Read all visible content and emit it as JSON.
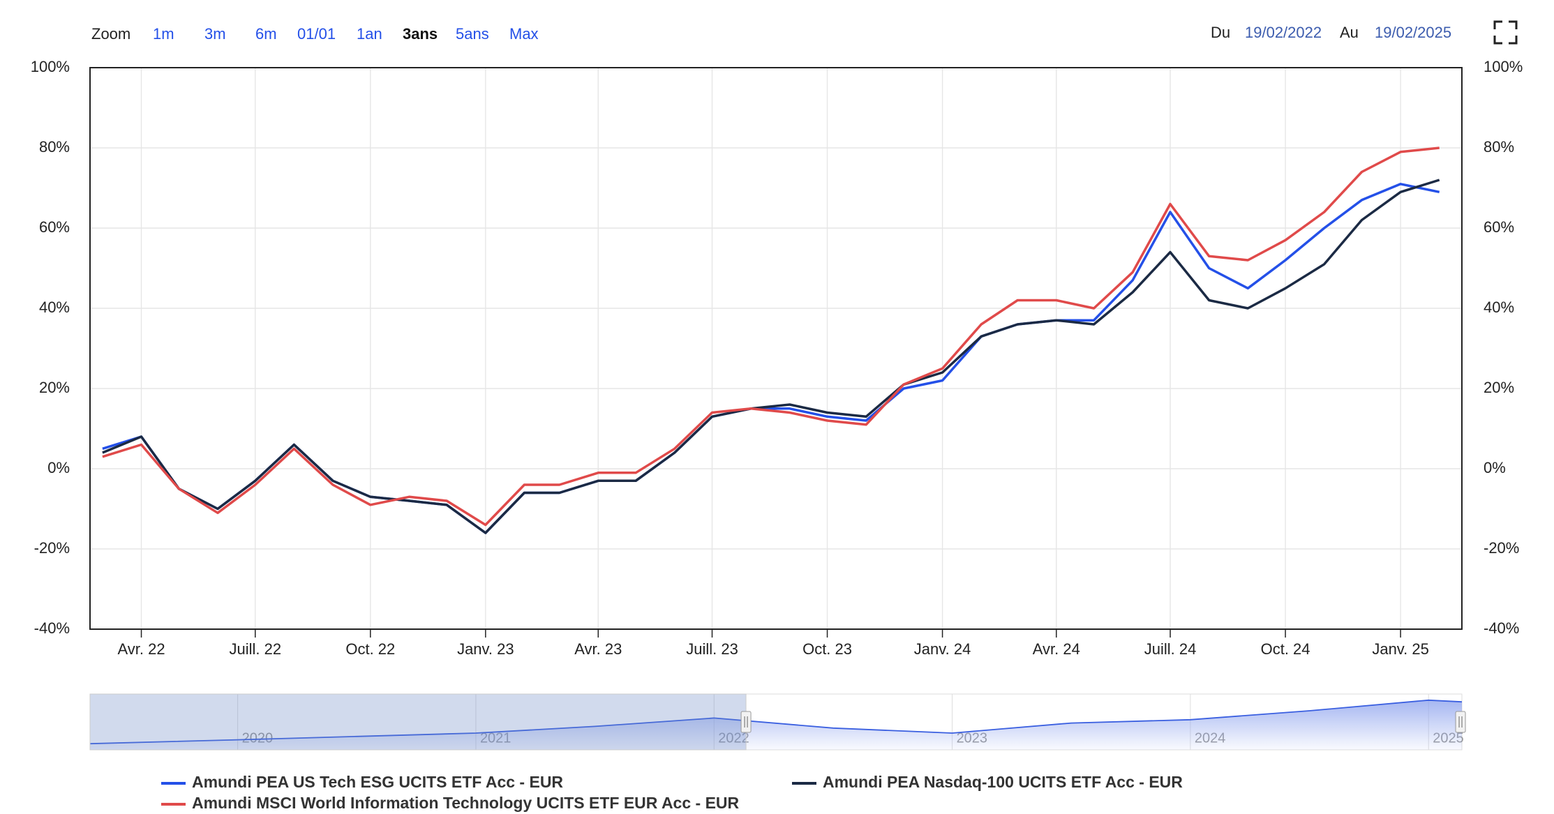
{
  "zoom": {
    "label": "Zoom",
    "buttons": [
      "1m",
      "3m",
      "6m",
      "01/01",
      "1an",
      "3ans",
      "5ans",
      "Max"
    ],
    "active": 5
  },
  "range": {
    "from_label": "Du",
    "from": "19/02/2022",
    "to_label": "Au",
    "to": "19/02/2025"
  },
  "chart_data": {
    "type": "line",
    "x": [
      "2022-03",
      "2022-04",
      "2022-05",
      "2022-06",
      "2022-07",
      "2022-08",
      "2022-09",
      "2022-10",
      "2022-11",
      "2022-12",
      "2023-01",
      "2023-02",
      "2023-03",
      "2023-04",
      "2023-05",
      "2023-06",
      "2023-07",
      "2023-08",
      "2023-09",
      "2023-10",
      "2023-11",
      "2023-12",
      "2024-01",
      "2024-02",
      "2024-03",
      "2024-04",
      "2024-05",
      "2024-06",
      "2024-07",
      "2024-08",
      "2024-09",
      "2024-10",
      "2024-11",
      "2024-12",
      "2025-01",
      "2025-02"
    ],
    "xlim": [
      "2022-02-19",
      "2025-02-19"
    ],
    "xticks": [
      {
        "value": "2022-04",
        "label": "Avr. 22"
      },
      {
        "value": "2022-07",
        "label": "Juill. 22"
      },
      {
        "value": "2022-10",
        "label": "Oct. 22"
      },
      {
        "value": "2023-01",
        "label": "Janv. 23"
      },
      {
        "value": "2023-04",
        "label": "Avr. 23"
      },
      {
        "value": "2023-07",
        "label": "Juill. 23"
      },
      {
        "value": "2023-10",
        "label": "Oct. 23"
      },
      {
        "value": "2024-01",
        "label": "Janv. 24"
      },
      {
        "value": "2024-04",
        "label": "Avr. 24"
      },
      {
        "value": "2024-07",
        "label": "Juill. 24"
      },
      {
        "value": "2024-10",
        "label": "Oct. 24"
      },
      {
        "value": "2025-01",
        "label": "Janv. 25"
      }
    ],
    "ylim": [
      -40,
      100
    ],
    "yticks": [
      {
        "value": -40,
        "label": "-40%"
      },
      {
        "value": -20,
        "label": "-20%"
      },
      {
        "value": 0,
        "label": "0%"
      },
      {
        "value": 20,
        "label": "20%"
      },
      {
        "value": 40,
        "label": "40%"
      },
      {
        "value": 60,
        "label": "60%"
      },
      {
        "value": 80,
        "label": "80%"
      },
      {
        "value": 100,
        "label": "100%"
      }
    ],
    "y2lim": [
      -40,
      100
    ],
    "y2ticks": [
      {
        "value": -40,
        "label": "-40%"
      },
      {
        "value": -20,
        "label": "-20%"
      },
      {
        "value": 0,
        "label": "0%"
      },
      {
        "value": 20,
        "label": "20%"
      },
      {
        "value": 40,
        "label": "40%"
      },
      {
        "value": 60,
        "label": "60%"
      },
      {
        "value": 80,
        "label": "80%"
      },
      {
        "value": 100,
        "label": "100%"
      }
    ],
    "grid": true,
    "series": [
      {
        "name": "Amundi PEA US Tech ESG UCITS ETF Acc - EUR",
        "color": "#2450e8",
        "values": [
          5,
          8,
          -5,
          -10,
          -3,
          6,
          -3,
          -7,
          -8,
          -9,
          -16,
          -6,
          -6,
          -3,
          -3,
          4,
          13,
          15,
          15,
          13,
          12,
          20,
          22,
          33,
          36,
          37,
          37,
          47,
          64,
          50,
          45,
          52,
          60,
          67,
          71,
          69
        ]
      },
      {
        "name": "Amundi PEA Nasdaq-100 UCITS ETF Acc - EUR",
        "color": "#1b2a44",
        "values": [
          4,
          8,
          -5,
          -10,
          -3,
          6,
          -3,
          -7,
          -8,
          -9,
          -16,
          -6,
          -6,
          -3,
          -3,
          4,
          13,
          15,
          16,
          14,
          13,
          21,
          24,
          33,
          36,
          37,
          36,
          44,
          54,
          42,
          40,
          45,
          51,
          62,
          69,
          72
        ]
      },
      {
        "name": "Amundi MSCI World Information Technology UCITS ETF EUR Acc - EUR",
        "color": "#e04a4a",
        "values": [
          3,
          6,
          -5,
          -11,
          -4,
          5,
          -4,
          -9,
          -7,
          -8,
          -14,
          -4,
          -4,
          -1,
          -1,
          5,
          14,
          15,
          14,
          12,
          11,
          21,
          25,
          36,
          42,
          42,
          40,
          49,
          66,
          53,
          52,
          57,
          64,
          74,
          79,
          80
        ]
      }
    ],
    "navigator": {
      "x": [
        2019.38,
        2020,
        2020.5,
        2021,
        2021.5,
        2022,
        2022.5,
        2023,
        2023.5,
        2024,
        2024.5,
        2025,
        2025.14
      ],
      "values": [
        11,
        18,
        24,
        30,
        42,
        57,
        39,
        30,
        48,
        54,
        70,
        89,
        86
      ],
      "ylim": [
        0,
        100
      ],
      "xlim": [
        2019.38,
        2025.14
      ],
      "xticks": [
        2020,
        2021,
        2022,
        2023,
        2024,
        2025
      ],
      "color": "#3a5fe0"
    }
  }
}
